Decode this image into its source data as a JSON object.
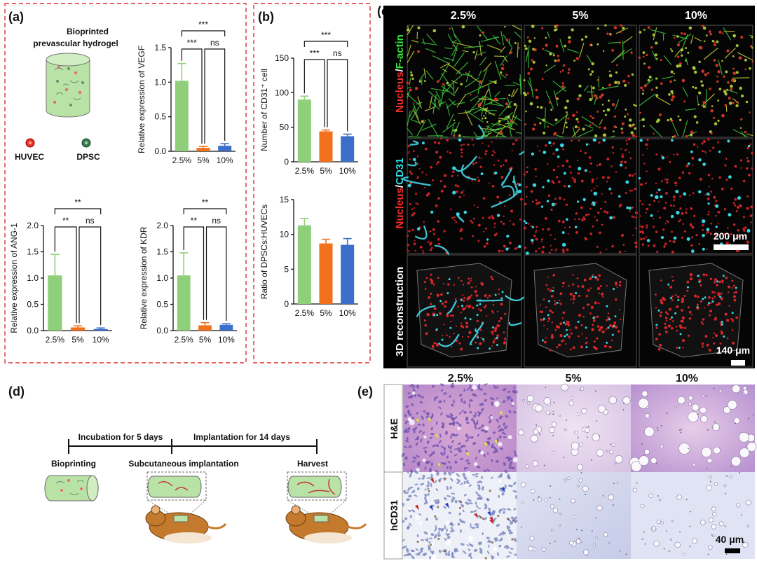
{
  "colors": {
    "green": "#8fcf7a",
    "orange": "#f2711c",
    "blue": "#3b6fc9",
    "frame": "#e0312f"
  },
  "panel_a": {
    "label": "(a)",
    "title": "Bioprinted prevascular hydrogel",
    "title_line1": "Bioprinted",
    "title_line2": "prevascular hydrogel",
    "legend": {
      "huvec": "HUVEC",
      "dpsc": "DPSC"
    }
  },
  "panel_b": {
    "label": "(b)"
  },
  "panel_c": {
    "label": "(c)",
    "columns": [
      "2.5%",
      "5%",
      "10%"
    ],
    "rows": [
      {
        "label_part1": "Nucleus",
        "label_sep": "/",
        "label_part2": "F-actin"
      },
      {
        "label_part1": "Nucleus",
        "label_sep": "/",
        "label_part2": "CD31"
      },
      {
        "label_part1": "3D reconstruction",
        "label_sep": "",
        "label_part2": ""
      }
    ],
    "scale_bar_1": "200 μm",
    "scale_bar_2": "140 μm"
  },
  "panel_d": {
    "label": "(d)",
    "phase1": "Incubation for 5 days",
    "phase2": "Implantation for 14 days",
    "step1": "Bioprinting",
    "step2": "Subcutaneous implantation",
    "step3": "Harvest"
  },
  "panel_e": {
    "label": "(e)",
    "columns": [
      "2.5%",
      "5%",
      "10%"
    ],
    "rows": [
      "H&E",
      "hCD31"
    ],
    "scale_bar": "40 μm"
  },
  "chart_data": [
    {
      "id": "vegf",
      "type": "bar",
      "categories": [
        "2.5%",
        "5%",
        "10%"
      ],
      "values": [
        1.02,
        0.05,
        0.08
      ],
      "errors": [
        0.25,
        0.02,
        0.03
      ],
      "ylabel": "Relative expression of VEGF",
      "ylim": [
        0,
        1.5
      ],
      "yticks": [
        "0.0",
        "0.5",
        "1.0",
        "1.5"
      ],
      "sig": [
        {
          "from": 0,
          "to": 2,
          "label": "***"
        },
        {
          "from": 0,
          "to": 1,
          "label": "***"
        },
        {
          "from": 1,
          "to": 2,
          "label": "ns"
        }
      ]
    },
    {
      "id": "cd31",
      "type": "bar",
      "categories": [
        "2.5%",
        "5%",
        "10%"
      ],
      "values": [
        90,
        44,
        37
      ],
      "errors": [
        5,
        2,
        3
      ],
      "ylabel": "Number of CD31⁺ cell",
      "ylim": [
        0,
        150
      ],
      "yticks": [
        "0",
        "50",
        "100",
        "150"
      ],
      "sig": [
        {
          "from": 0,
          "to": 2,
          "label": "***"
        },
        {
          "from": 0,
          "to": 1,
          "label": "***"
        },
        {
          "from": 1,
          "to": 2,
          "label": "ns"
        }
      ]
    },
    {
      "id": "ang1",
      "type": "bar",
      "categories": [
        "2.5%",
        "5%",
        "10%"
      ],
      "values": [
        1.05,
        0.06,
        0.03
      ],
      "errors": [
        0.4,
        0.03,
        0.02
      ],
      "ylabel": "Relative expression of ANG-1",
      "ylim": [
        0,
        2.0
      ],
      "yticks": [
        "0.0",
        "0.5",
        "1.0",
        "1.5",
        "2.0"
      ],
      "sig": [
        {
          "from": 0,
          "to": 2,
          "label": "**"
        },
        {
          "from": 0,
          "to": 1,
          "label": "**"
        },
        {
          "from": 1,
          "to": 2,
          "label": "ns"
        }
      ]
    },
    {
      "id": "kdr",
      "type": "bar",
      "categories": [
        "2.5%",
        "5%",
        "10%"
      ],
      "values": [
        1.05,
        0.1,
        0.11
      ],
      "errors": [
        0.43,
        0.05,
        0.02
      ],
      "ylabel": "Relative expression of KDR",
      "ylim": [
        0,
        2.0
      ],
      "yticks": [
        "0.0",
        "0.5",
        "1.0",
        "1.5",
        "2.0"
      ],
      "sig": [
        {
          "from": 0,
          "to": 2,
          "label": "**"
        },
        {
          "from": 0,
          "to": 1,
          "label": "**"
        },
        {
          "from": 1,
          "to": 2,
          "label": "ns"
        }
      ]
    },
    {
      "id": "ratio",
      "type": "bar",
      "categories": [
        "2.5%",
        "5%",
        "10%"
      ],
      "values": [
        11.3,
        8.7,
        8.5
      ],
      "errors": [
        1.0,
        0.6,
        0.9
      ],
      "ylabel": "Ratio of DPSCs:HUVECs",
      "ylim": [
        0,
        15
      ],
      "yticks": [
        "0",
        "5",
        "10",
        "15"
      ],
      "sig": []
    }
  ]
}
